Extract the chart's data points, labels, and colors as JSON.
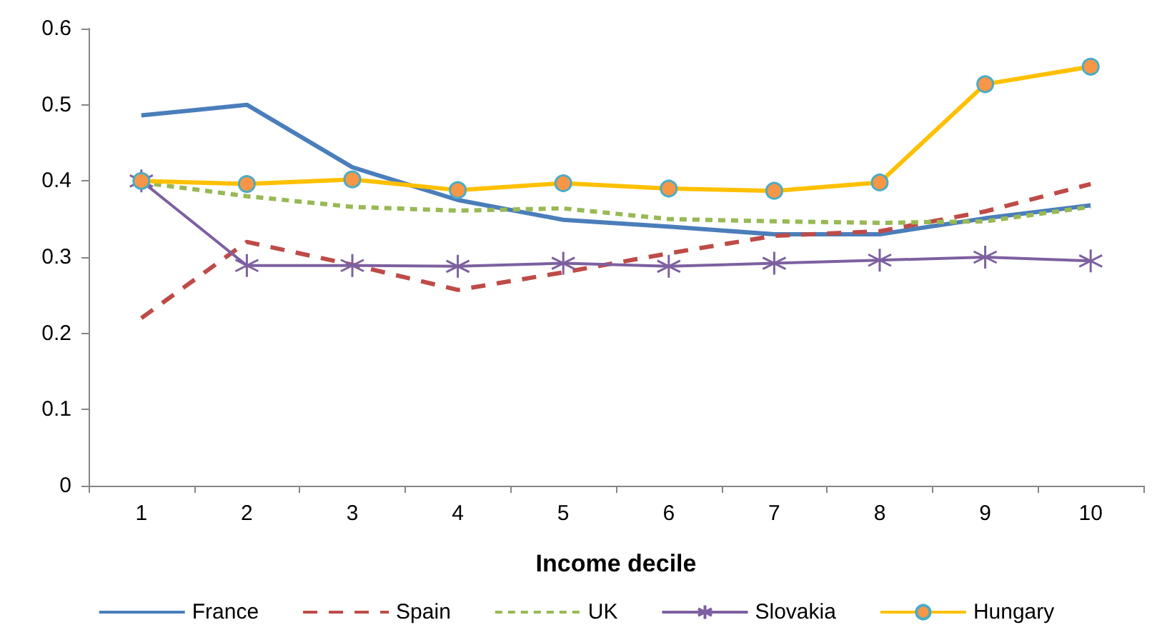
{
  "chart_data": {
    "type": "line",
    "xlabel": "Income decile",
    "categories": [
      "1",
      "2",
      "3",
      "4",
      "5",
      "6",
      "7",
      "8",
      "9",
      "10"
    ],
    "ylim": [
      0,
      0.6
    ],
    "yticks": [
      0,
      0.1,
      0.2,
      0.3,
      0.4,
      0.5,
      0.6
    ],
    "grid": false,
    "legend": "bottom",
    "series": [
      {
        "name": "France",
        "color": "#4a7ebb",
        "line_style": "solid",
        "marker": "none",
        "values": [
          0.486,
          0.5,
          0.418,
          0.375,
          0.349,
          0.34,
          0.33,
          0.33,
          0.351,
          0.368
        ]
      },
      {
        "name": "Spain",
        "color": "#be4b48",
        "line_style": "dashed",
        "marker": "none",
        "values": [
          0.22,
          0.32,
          0.29,
          0.257,
          0.28,
          0.305,
          0.328,
          0.334,
          0.36,
          0.396
        ]
      },
      {
        "name": "UK",
        "color": "#98b954",
        "line_style": "dotted",
        "marker": "none",
        "values": [
          0.398,
          0.38,
          0.366,
          0.361,
          0.364,
          0.35,
          0.347,
          0.345,
          0.347,
          0.366
        ]
      },
      {
        "name": "Slovakia",
        "color": "#7d60a0",
        "line_style": "solid",
        "marker": "cross",
        "values": [
          0.4,
          0.289,
          0.289,
          0.288,
          0.292,
          0.288,
          0.292,
          0.296,
          0.3,
          0.295
        ]
      },
      {
        "name": "Hungary",
        "color": "#ffc000",
        "line_style": "solid",
        "marker": "circle",
        "values": [
          0.4,
          0.396,
          0.402,
          0.388,
          0.397,
          0.39,
          0.387,
          0.398,
          0.527,
          0.55
        ]
      }
    ]
  }
}
